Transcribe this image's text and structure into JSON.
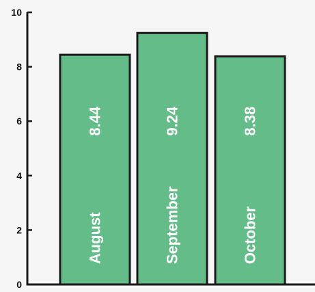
{
  "chart_data": {
    "type": "bar",
    "title": "",
    "xlabel": "",
    "ylabel": "",
    "categories": [
      "August",
      "September",
      "October"
    ],
    "values": [
      8.44,
      9.24,
      8.38
    ],
    "value_labels": [
      "8.44",
      "9.24",
      "8.38"
    ],
    "ylim": [
      0,
      10
    ],
    "yticks": [
      0,
      2,
      4,
      6,
      8,
      10
    ],
    "ytick_labels": [
      "0",
      "2",
      "4",
      "6",
      "8",
      "10"
    ],
    "grid": false,
    "legend": "none",
    "colors": {
      "bar_fill": "#64bc88",
      "bar_stroke": "#1a1a1a",
      "axis": "#1a1a1a",
      "background": "#f6f6f6",
      "label_text": "#ffffff"
    }
  }
}
